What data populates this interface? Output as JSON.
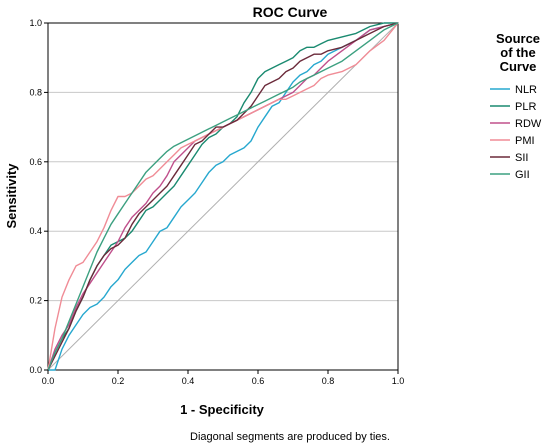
{
  "chart_data": {
    "type": "line",
    "title": "ROC Curve",
    "xlabel": "1 - Specificity",
    "ylabel": "Sensitivity",
    "xlim": [
      0.0,
      1.0
    ],
    "ylim": [
      0.0,
      1.0
    ],
    "xticks": [
      "0.0",
      "0.2",
      "0.4",
      "0.6",
      "0.8",
      "1.0"
    ],
    "yticks": [
      "0.0",
      "0.2",
      "0.4",
      "0.6",
      "0.8",
      "1.0"
    ],
    "grid": "horizontal",
    "footnote": "Diagonal segments are produced by ties.",
    "legend": {
      "title_lines": [
        "Source",
        "of the",
        "Curve"
      ],
      "position": "right"
    },
    "series": [
      {
        "name": "NLR",
        "color": "#27a8cf",
        "x": [
          0.0,
          0.02,
          0.04,
          0.06,
          0.08,
          0.1,
          0.12,
          0.14,
          0.16,
          0.18,
          0.2,
          0.22,
          0.24,
          0.26,
          0.28,
          0.3,
          0.32,
          0.34,
          0.36,
          0.38,
          0.4,
          0.42,
          0.44,
          0.46,
          0.48,
          0.5,
          0.52,
          0.54,
          0.56,
          0.58,
          0.6,
          0.62,
          0.64,
          0.66,
          0.68,
          0.7,
          0.72,
          0.74,
          0.76,
          0.78,
          0.8,
          0.84,
          0.88,
          0.92,
          0.96,
          1.0
        ],
        "y": [
          0.0,
          0.0,
          0.06,
          0.1,
          0.13,
          0.16,
          0.18,
          0.19,
          0.21,
          0.24,
          0.26,
          0.29,
          0.31,
          0.33,
          0.34,
          0.37,
          0.4,
          0.41,
          0.44,
          0.47,
          0.49,
          0.51,
          0.54,
          0.57,
          0.59,
          0.6,
          0.62,
          0.63,
          0.64,
          0.66,
          0.7,
          0.73,
          0.76,
          0.77,
          0.8,
          0.83,
          0.85,
          0.86,
          0.88,
          0.89,
          0.91,
          0.93,
          0.95,
          0.98,
          0.99,
          1.0
        ]
      },
      {
        "name": "PLR",
        "color": "#1a8a70",
        "x": [
          0.0,
          0.02,
          0.04,
          0.06,
          0.08,
          0.1,
          0.12,
          0.14,
          0.16,
          0.18,
          0.2,
          0.22,
          0.24,
          0.26,
          0.28,
          0.3,
          0.32,
          0.34,
          0.36,
          0.38,
          0.4,
          0.42,
          0.44,
          0.46,
          0.48,
          0.5,
          0.52,
          0.54,
          0.56,
          0.58,
          0.6,
          0.62,
          0.64,
          0.66,
          0.68,
          0.7,
          0.72,
          0.74,
          0.76,
          0.78,
          0.8,
          0.84,
          0.88,
          0.92,
          0.96,
          1.0
        ],
        "y": [
          0.0,
          0.05,
          0.09,
          0.12,
          0.17,
          0.21,
          0.26,
          0.3,
          0.33,
          0.36,
          0.37,
          0.38,
          0.4,
          0.43,
          0.46,
          0.47,
          0.49,
          0.51,
          0.53,
          0.56,
          0.59,
          0.62,
          0.65,
          0.67,
          0.68,
          0.7,
          0.71,
          0.73,
          0.77,
          0.8,
          0.84,
          0.86,
          0.87,
          0.88,
          0.89,
          0.9,
          0.92,
          0.93,
          0.93,
          0.94,
          0.95,
          0.96,
          0.97,
          0.99,
          1.0,
          1.0
        ]
      },
      {
        "name": "RDW",
        "color": "#c0508c",
        "x": [
          0.0,
          0.02,
          0.04,
          0.06,
          0.08,
          0.1,
          0.12,
          0.14,
          0.16,
          0.18,
          0.2,
          0.22,
          0.24,
          0.26,
          0.28,
          0.3,
          0.32,
          0.34,
          0.36,
          0.38,
          0.4,
          0.42,
          0.44,
          0.46,
          0.48,
          0.5,
          0.52,
          0.54,
          0.56,
          0.58,
          0.6,
          0.62,
          0.64,
          0.66,
          0.68,
          0.7,
          0.72,
          0.74,
          0.76,
          0.78,
          0.8,
          0.84,
          0.88,
          0.92,
          0.96,
          1.0
        ],
        "y": [
          0.0,
          0.06,
          0.1,
          0.13,
          0.18,
          0.22,
          0.25,
          0.28,
          0.31,
          0.34,
          0.37,
          0.41,
          0.44,
          0.46,
          0.48,
          0.51,
          0.53,
          0.56,
          0.6,
          0.62,
          0.64,
          0.66,
          0.67,
          0.68,
          0.69,
          0.7,
          0.71,
          0.72,
          0.73,
          0.74,
          0.75,
          0.76,
          0.77,
          0.78,
          0.79,
          0.8,
          0.82,
          0.84,
          0.85,
          0.87,
          0.89,
          0.92,
          0.95,
          0.98,
          0.99,
          1.0
        ]
      },
      {
        "name": "PMI",
        "color": "#f08c96",
        "x": [
          0.0,
          0.02,
          0.04,
          0.06,
          0.08,
          0.1,
          0.12,
          0.14,
          0.16,
          0.18,
          0.2,
          0.22,
          0.24,
          0.26,
          0.28,
          0.3,
          0.32,
          0.34,
          0.36,
          0.38,
          0.4,
          0.42,
          0.44,
          0.46,
          0.48,
          0.5,
          0.52,
          0.54,
          0.56,
          0.58,
          0.6,
          0.62,
          0.64,
          0.66,
          0.68,
          0.7,
          0.72,
          0.74,
          0.76,
          0.78,
          0.8,
          0.84,
          0.88,
          0.92,
          0.96,
          1.0
        ],
        "y": [
          0.0,
          0.12,
          0.21,
          0.26,
          0.3,
          0.31,
          0.34,
          0.37,
          0.41,
          0.46,
          0.5,
          0.5,
          0.51,
          0.53,
          0.55,
          0.56,
          0.58,
          0.6,
          0.62,
          0.64,
          0.65,
          0.66,
          0.67,
          0.68,
          0.69,
          0.7,
          0.71,
          0.72,
          0.73,
          0.74,
          0.75,
          0.76,
          0.77,
          0.78,
          0.78,
          0.79,
          0.8,
          0.81,
          0.82,
          0.84,
          0.85,
          0.86,
          0.88,
          0.92,
          0.95,
          1.0
        ]
      },
      {
        "name": "SII",
        "color": "#6b2a3a",
        "x": [
          0.0,
          0.02,
          0.04,
          0.06,
          0.08,
          0.1,
          0.12,
          0.14,
          0.16,
          0.18,
          0.2,
          0.22,
          0.24,
          0.26,
          0.28,
          0.3,
          0.32,
          0.34,
          0.36,
          0.38,
          0.4,
          0.42,
          0.44,
          0.46,
          0.48,
          0.5,
          0.52,
          0.54,
          0.56,
          0.58,
          0.6,
          0.62,
          0.64,
          0.66,
          0.68,
          0.7,
          0.72,
          0.74,
          0.76,
          0.78,
          0.8,
          0.84,
          0.88,
          0.92,
          0.96,
          1.0
        ],
        "y": [
          0.0,
          0.04,
          0.08,
          0.12,
          0.17,
          0.21,
          0.26,
          0.3,
          0.33,
          0.35,
          0.36,
          0.38,
          0.42,
          0.45,
          0.47,
          0.49,
          0.51,
          0.53,
          0.56,
          0.59,
          0.62,
          0.65,
          0.66,
          0.68,
          0.7,
          0.7,
          0.71,
          0.72,
          0.74,
          0.76,
          0.79,
          0.82,
          0.83,
          0.84,
          0.86,
          0.87,
          0.89,
          0.9,
          0.91,
          0.91,
          0.92,
          0.93,
          0.95,
          0.97,
          0.99,
          1.0
        ]
      },
      {
        "name": "GII",
        "color": "#3ca080",
        "x": [
          0.0,
          0.02,
          0.04,
          0.06,
          0.08,
          0.1,
          0.12,
          0.14,
          0.16,
          0.18,
          0.2,
          0.22,
          0.24,
          0.26,
          0.28,
          0.3,
          0.32,
          0.34,
          0.36,
          0.38,
          0.4,
          0.42,
          0.44,
          0.46,
          0.48,
          0.5,
          0.52,
          0.54,
          0.56,
          0.58,
          0.6,
          0.62,
          0.64,
          0.66,
          0.68,
          0.7,
          0.72,
          0.74,
          0.76,
          0.78,
          0.8,
          0.84,
          0.88,
          0.92,
          0.96,
          1.0
        ],
        "y": [
          0.0,
          0.05,
          0.09,
          0.14,
          0.19,
          0.24,
          0.29,
          0.34,
          0.38,
          0.42,
          0.45,
          0.48,
          0.51,
          0.54,
          0.57,
          0.59,
          0.61,
          0.63,
          0.645,
          0.655,
          0.665,
          0.675,
          0.685,
          0.695,
          0.705,
          0.715,
          0.725,
          0.735,
          0.745,
          0.755,
          0.765,
          0.775,
          0.785,
          0.795,
          0.805,
          0.815,
          0.83,
          0.84,
          0.85,
          0.86,
          0.87,
          0.89,
          0.92,
          0.95,
          0.98,
          1.0
        ]
      }
    ]
  }
}
